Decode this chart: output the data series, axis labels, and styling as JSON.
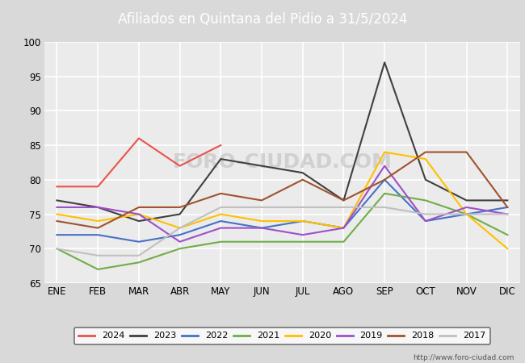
{
  "title": "Afiliados en Quintana del Pidio a 31/5/2024",
  "title_bg_color": "#5b9bd5",
  "title_text_color": "white",
  "ylim": [
    65,
    100
  ],
  "yticks": [
    65,
    70,
    75,
    80,
    85,
    90,
    95,
    100
  ],
  "months": [
    "ENE",
    "FEB",
    "MAR",
    "ABR",
    "MAY",
    "JUN",
    "JUL",
    "AGO",
    "SEP",
    "OCT",
    "NOV",
    "DIC"
  ],
  "series": {
    "2024": {
      "color": "#e8534a",
      "data": [
        79,
        79,
        86,
        82,
        85,
        null,
        null,
        null,
        null,
        null,
        null,
        null
      ]
    },
    "2023": {
      "color": "#404040",
      "data": [
        77,
        76,
        74,
        75,
        83,
        82,
        81,
        77,
        97,
        80,
        77,
        77
      ]
    },
    "2022": {
      "color": "#4472c4",
      "data": [
        72,
        72,
        71,
        72,
        74,
        73,
        74,
        73,
        80,
        74,
        75,
        76
      ]
    },
    "2021": {
      "color": "#70ad47",
      "data": [
        70,
        67,
        68,
        70,
        71,
        71,
        71,
        71,
        78,
        77,
        75,
        72
      ]
    },
    "2020": {
      "color": "#ffc000",
      "data": [
        75,
        74,
        75,
        73,
        75,
        74,
        74,
        73,
        84,
        83,
        75,
        70
      ]
    },
    "2019": {
      "color": "#9e4fcc",
      "data": [
        76,
        76,
        75,
        71,
        73,
        73,
        72,
        73,
        82,
        74,
        76,
        75
      ]
    },
    "2018": {
      "color": "#a0522d",
      "data": [
        74,
        73,
        76,
        76,
        78,
        77,
        80,
        77,
        80,
        84,
        84,
        76
      ]
    },
    "2017": {
      "color": "#c0c0c0",
      "data": [
        70,
        69,
        69,
        73,
        76,
        76,
        76,
        76,
        76,
        75,
        75,
        75
      ]
    }
  },
  "watermark_text": "FORO-CIUDAD.COM",
  "watermark_url": "http://www.foro-ciudad.com",
  "background_color": "#d9d9d9",
  "plot_bg_color": "#ebebeb",
  "grid_color": "white"
}
